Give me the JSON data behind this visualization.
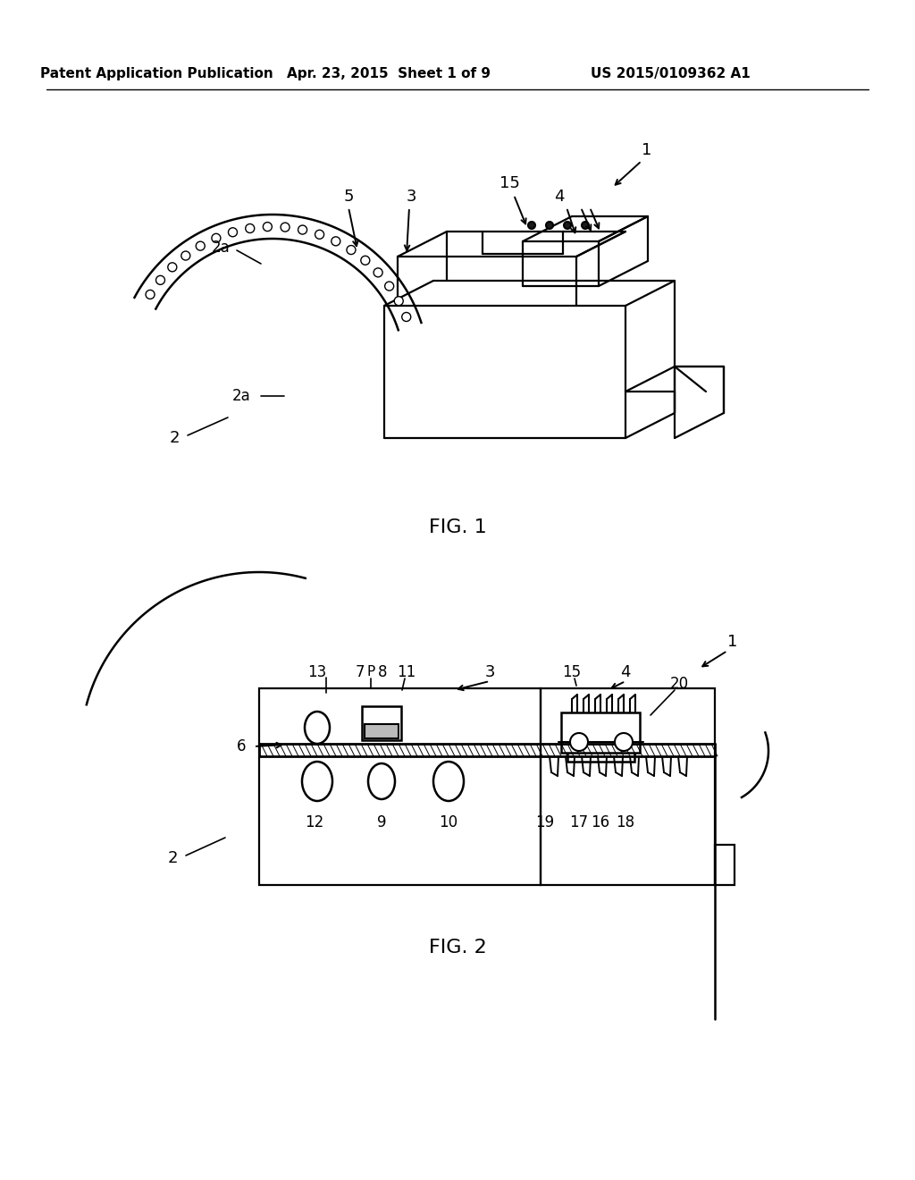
{
  "bg_color": "#ffffff",
  "line_color": "#000000",
  "header_left": "Patent Application Publication",
  "header_mid": "Apr. 23, 2015  Sheet 1 of 9",
  "header_right": "US 2015/0109362 A1",
  "fig1_label": "FIG. 1",
  "fig2_label": "FIG. 2"
}
